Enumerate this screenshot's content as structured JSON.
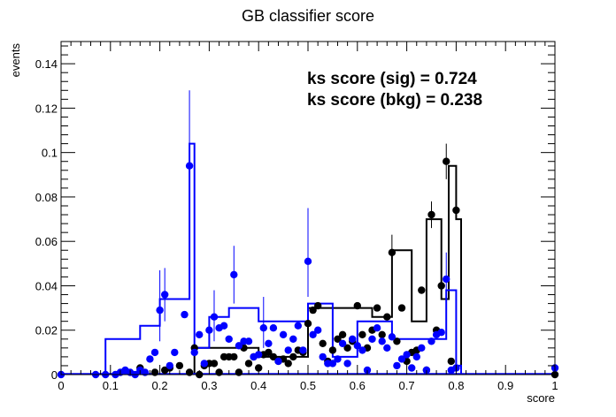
{
  "chart_data": {
    "type": "histogram",
    "title": "GB classifier score",
    "xlabel": "score",
    "ylabel": "events",
    "xlim": [
      0,
      1
    ],
    "ylim": [
      0,
      0.15
    ],
    "x_ticks": [
      "0",
      "0.1",
      "0.2",
      "0.3",
      "0.4",
      "0.5",
      "0.6",
      "0.7",
      "0.8",
      "0.9",
      "1"
    ],
    "y_ticks": [
      "0",
      "0.02",
      "0.04",
      "0.06",
      "0.08",
      "0.1",
      "0.12",
      "0.14"
    ],
    "annotations": [
      "ks score (sig) = 0.724",
      "ks score (bkg) = 0.238"
    ],
    "grid": false,
    "colors": {
      "signal": "#000000",
      "background": "#0000ff"
    },
    "series": [
      {
        "style": "step",
        "color": "#000000",
        "points": [
          [
            0.27,
            0.012
          ],
          [
            0.32,
            0.012
          ],
          [
            0.4,
            0.008
          ],
          [
            0.5,
            0.03
          ],
          [
            0.6,
            0.03
          ],
          [
            0.63,
            0.026
          ],
          [
            0.67,
            0.056
          ],
          [
            0.71,
            0.024
          ],
          [
            0.74,
            0.07
          ],
          [
            0.77,
            0.034
          ],
          [
            0.785,
            0.094
          ],
          [
            0.8,
            0.07
          ],
          [
            0.81,
            0.0
          ]
        ]
      },
      {
        "style": "step",
        "color": "#0000ff",
        "points": [
          [
            0.09,
            0.016
          ],
          [
            0.16,
            0.022
          ],
          [
            0.2,
            0.034
          ],
          [
            0.26,
            0.104
          ],
          [
            0.27,
            0.012
          ],
          [
            0.3,
            0.026
          ],
          [
            0.34,
            0.03
          ],
          [
            0.4,
            0.024
          ],
          [
            0.5,
            0.032
          ],
          [
            0.55,
            0.008
          ],
          [
            0.6,
            0.024
          ],
          [
            0.67,
            0.016
          ],
          [
            0.72,
            0.016
          ],
          [
            0.78,
            0.038
          ],
          [
            0.8,
            0.004
          ],
          [
            0.81,
            0.0
          ]
        ]
      },
      {
        "style": "markers",
        "color": "#000000",
        "points": [
          [
            0.16,
            0.003
          ],
          [
            0.19,
            0.001
          ],
          [
            0.21,
            0.002
          ],
          [
            0.22,
            0.003
          ],
          [
            0.24,
            0.004
          ],
          [
            0.26,
            0.001
          ],
          [
            0.27,
            0.012
          ],
          [
            0.28,
            0.0
          ],
          [
            0.29,
            0.004
          ],
          [
            0.3,
            0.005
          ],
          [
            0.31,
            0.005
          ],
          [
            0.32,
            0.001
          ],
          [
            0.33,
            0.008
          ],
          [
            0.34,
            0.008
          ],
          [
            0.35,
            0.008
          ],
          [
            0.36,
            0.001
          ],
          [
            0.37,
            0.012
          ],
          [
            0.38,
            0.005
          ],
          [
            0.39,
            0.008
          ],
          [
            0.4,
            0.003
          ],
          [
            0.41,
            0.009
          ],
          [
            0.42,
            0.01
          ],
          [
            0.43,
            0.008
          ],
          [
            0.44,
            0.006
          ],
          [
            0.45,
            0.007
          ],
          [
            0.46,
            0.005
          ],
          [
            0.47,
            0.008
          ],
          [
            0.48,
            0.011
          ],
          [
            0.49,
            0.01
          ],
          [
            0.5,
            0.023
          ],
          [
            0.51,
            0.029
          ],
          [
            0.52,
            0.031
          ],
          [
            0.53,
            0.014
          ],
          [
            0.54,
            0.006
          ],
          [
            0.55,
            0.011
          ],
          [
            0.56,
            0.016
          ],
          [
            0.57,
            0.018
          ],
          [
            0.58,
            0.012
          ],
          [
            0.59,
            0.015
          ],
          [
            0.6,
            0.031
          ],
          [
            0.61,
            0.018
          ],
          [
            0.62,
            0.012
          ],
          [
            0.63,
            0.02
          ],
          [
            0.64,
            0.03
          ],
          [
            0.65,
            0.018
          ],
          [
            0.66,
            0.026
          ],
          [
            0.67,
            0.055
          ],
          [
            0.68,
            0.015
          ],
          [
            0.69,
            0.03
          ],
          [
            0.7,
            0.006
          ],
          [
            0.71,
            0.01
          ],
          [
            0.72,
            0.011
          ],
          [
            0.73,
            0.038
          ],
          [
            0.74,
            0.002
          ],
          [
            0.75,
            0.072
          ],
          [
            0.76,
            0.02
          ],
          [
            0.77,
            0.04
          ],
          [
            0.78,
            0.096
          ],
          [
            0.79,
            0.006
          ],
          [
            0.8,
            0.074
          ],
          [
            1.0,
            0.0
          ]
        ]
      },
      {
        "style": "markers",
        "color": "#0000ff",
        "points": [
          [
            0.0,
            0.0
          ],
          [
            0.07,
            0.0
          ],
          [
            0.09,
            0.0
          ],
          [
            0.11,
            0.0
          ],
          [
            0.12,
            0.001
          ],
          [
            0.13,
            0.002
          ],
          [
            0.14,
            0.001
          ],
          [
            0.15,
            0.0
          ],
          [
            0.16,
            0.002
          ],
          [
            0.17,
            0.001
          ],
          [
            0.18,
            0.007
          ],
          [
            0.19,
            0.01
          ],
          [
            0.2,
            0.029
          ],
          [
            0.21,
            0.036
          ],
          [
            0.22,
            0.004
          ],
          [
            0.23,
            0.01
          ],
          [
            0.25,
            0.027
          ],
          [
            0.26,
            0.094
          ],
          [
            0.27,
            0.01
          ],
          [
            0.28,
            0.018
          ],
          [
            0.29,
            0.005
          ],
          [
            0.3,
            0.02
          ],
          [
            0.31,
            0.026
          ],
          [
            0.32,
            0.021
          ],
          [
            0.33,
            0.022
          ],
          [
            0.34,
            0.016
          ],
          [
            0.35,
            0.045
          ],
          [
            0.36,
            0.013
          ],
          [
            0.37,
            0.015
          ],
          [
            0.38,
            0.015
          ],
          [
            0.39,
            0.008
          ],
          [
            0.4,
            0.009
          ],
          [
            0.41,
            0.021
          ],
          [
            0.42,
            0.014
          ],
          [
            0.43,
            0.021
          ],
          [
            0.44,
            0.006
          ],
          [
            0.45,
            0.018
          ],
          [
            0.46,
            0.011
          ],
          [
            0.47,
            0.016
          ],
          [
            0.48,
            0.022
          ],
          [
            0.49,
            0.011
          ],
          [
            0.5,
            0.051
          ],
          [
            0.51,
            0.018
          ],
          [
            0.52,
            0.02
          ],
          [
            0.53,
            0.008
          ],
          [
            0.54,
            0.005
          ],
          [
            0.55,
            0.005
          ],
          [
            0.56,
            0.007
          ],
          [
            0.57,
            0.014
          ],
          [
            0.58,
            0.005
          ],
          [
            0.59,
            0.016
          ],
          [
            0.6,
            0.013
          ],
          [
            0.61,
            0.011
          ],
          [
            0.62,
            0.002
          ],
          [
            0.63,
            0.016
          ],
          [
            0.64,
            0.021
          ],
          [
            0.65,
            0.015
          ],
          [
            0.66,
            0.012
          ],
          [
            0.67,
            0.017
          ],
          [
            0.68,
            0.004
          ],
          [
            0.69,
            0.007
          ],
          [
            0.7,
            0.009
          ],
          [
            0.71,
            0.003
          ],
          [
            0.72,
            0.008
          ],
          [
            0.73,
            0.012
          ],
          [
            0.74,
            0.002
          ],
          [
            0.75,
            0.015
          ],
          [
            0.76,
            0.018
          ],
          [
            0.77,
            0.019
          ],
          [
            0.78,
            0.043
          ],
          [
            0.79,
            0.002
          ],
          [
            0.8,
            0.003
          ],
          [
            1.0,
            0.003
          ]
        ]
      }
    ],
    "error_bars": [
      {
        "series": 3,
        "x": 0.26,
        "low": 0.068,
        "high": 0.128
      },
      {
        "series": 3,
        "x": 0.2,
        "low": 0.015,
        "high": 0.047
      },
      {
        "series": 3,
        "x": 0.21,
        "low": 0.024,
        "high": 0.048
      },
      {
        "series": 3,
        "x": 0.35,
        "low": 0.032,
        "high": 0.058
      },
      {
        "series": 3,
        "x": 0.5,
        "low": 0.035,
        "high": 0.075
      },
      {
        "series": 3,
        "x": 0.31,
        "low": 0.015,
        "high": 0.038
      },
      {
        "series": 3,
        "x": 0.41,
        "low": 0.012,
        "high": 0.035
      },
      {
        "series": 3,
        "x": 0.78,
        "low": 0.03,
        "high": 0.055
      },
      {
        "series": 2,
        "x": 0.78,
        "low": 0.088,
        "high": 0.104
      },
      {
        "series": 2,
        "x": 0.67,
        "low": 0.047,
        "high": 0.063
      },
      {
        "series": 2,
        "x": 0.75,
        "low": 0.066,
        "high": 0.078
      }
    ]
  }
}
